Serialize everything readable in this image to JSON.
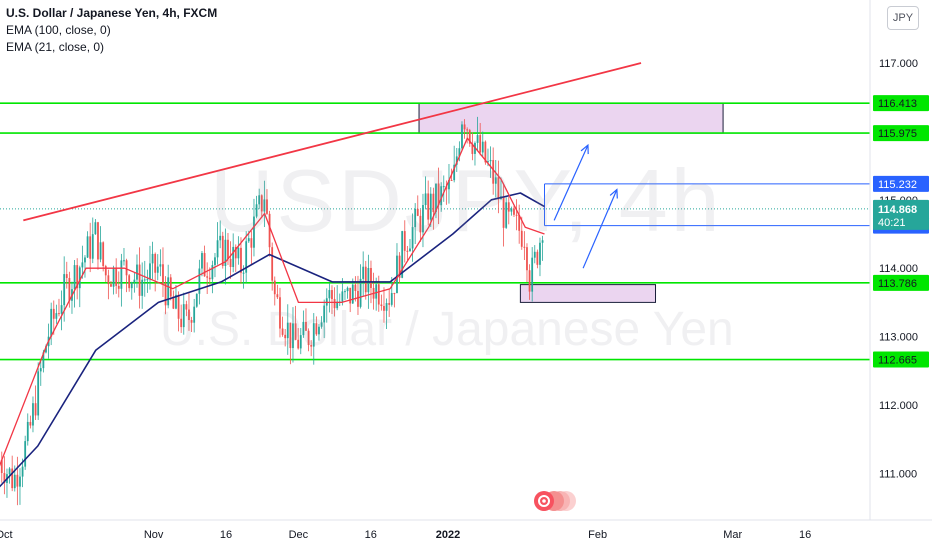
{
  "header": {
    "title": "U.S. Dollar / Japanese Yen, 4h, FXCM",
    "indicators": [
      "EMA (100, close, 0)",
      "EMA (21, close, 0)"
    ],
    "currency_button": "JPY"
  },
  "watermark": {
    "symbol": "USDJPY, 4h",
    "description": "U.S. Dollar / Japanese Yen"
  },
  "colors": {
    "up": "#26a69a",
    "down": "#ef5350",
    "ema21": "#f23645",
    "ema100": "#1a237e",
    "level": "#00e600",
    "trendline": "#f23645",
    "zone_fill": "#ebd5f0",
    "arrow": "#2962ff"
  },
  "chart_data": {
    "type": "candlestick",
    "symbol": "USDJPY",
    "interval": "4h",
    "y_range": [
      110.55,
      117.9
    ],
    "y_ticks": [
      "117.000",
      "114.000",
      "113.000",
      "112.000",
      "111.000"
    ],
    "x_ticks": [
      "Oct",
      "Nov",
      "16",
      "Dec",
      "16",
      "2022",
      "Feb",
      "Mar",
      "16"
    ],
    "last_price": "114.868",
    "countdown": "40:21",
    "horizontal_levels": [
      "116.413",
      "115.975",
      "112.665",
      "113.786"
    ],
    "box_lines": [
      "115.232",
      "114.623"
    ],
    "hidden_label": "115.000",
    "zones": [
      {
        "name": "supply-zone",
        "top": 116.413,
        "bottom": 115.975
      },
      {
        "name": "demand-zone",
        "top": 113.76,
        "bottom": 113.5
      }
    ],
    "ohlc_anchors": [
      {
        "date": "2021-09-30",
        "price": 111.2
      },
      {
        "date": "2021-10-03",
        "price": 110.9
      },
      {
        "date": "2021-10-06",
        "price": 111.5
      },
      {
        "date": "2021-10-10",
        "price": 113.0
      },
      {
        "date": "2021-10-13",
        "price": 113.6
      },
      {
        "date": "2021-10-18",
        "price": 114.2
      },
      {
        "date": "2021-10-20",
        "price": 114.5
      },
      {
        "date": "2021-10-22",
        "price": 113.9
      },
      {
        "date": "2021-10-26",
        "price": 114.0
      },
      {
        "date": "2021-10-29",
        "price": 113.8
      },
      {
        "date": "2021-11-02",
        "price": 114.0
      },
      {
        "date": "2021-11-05",
        "price": 113.4
      },
      {
        "date": "2021-11-08",
        "price": 113.2
      },
      {
        "date": "2021-11-11",
        "price": 114.0
      },
      {
        "date": "2021-11-16",
        "price": 114.3
      },
      {
        "date": "2021-11-19",
        "price": 114.0
      },
      {
        "date": "2021-11-24",
        "price": 115.1
      },
      {
        "date": "2021-11-26",
        "price": 113.6
      },
      {
        "date": "2021-11-30",
        "price": 112.9
      },
      {
        "date": "2021-12-03",
        "price": 113.0
      },
      {
        "date": "2021-12-07",
        "price": 113.6
      },
      {
        "date": "2021-12-10",
        "price": 113.5
      },
      {
        "date": "2021-12-15",
        "price": 113.8
      },
      {
        "date": "2021-12-20",
        "price": 113.6
      },
      {
        "date": "2021-12-23",
        "price": 114.4
      },
      {
        "date": "2021-12-28",
        "price": 114.9
      },
      {
        "date": "2022-01-02",
        "price": 115.2
      },
      {
        "date": "2022-01-04",
        "price": 116.3
      },
      {
        "date": "2022-01-06",
        "price": 115.9
      },
      {
        "date": "2022-01-10",
        "price": 115.4
      },
      {
        "date": "2022-01-13",
        "price": 114.7
      },
      {
        "date": "2022-01-17",
        "price": 114.5
      },
      {
        "date": "2022-01-18",
        "price": 113.8
      },
      {
        "date": "2022-01-20",
        "price": 114.4
      },
      {
        "date": "2022-01-21",
        "price": 114.87
      }
    ],
    "ema21_anchors": [
      {
        "date": "2021-09-30",
        "price": 111.1
      },
      {
        "date": "2021-10-10",
        "price": 112.9
      },
      {
        "date": "2021-10-18",
        "price": 114.0
      },
      {
        "date": "2021-10-26",
        "price": 114.0
      },
      {
        "date": "2021-11-05",
        "price": 113.7
      },
      {
        "date": "2021-11-16",
        "price": 114.1
      },
      {
        "date": "2021-11-24",
        "price": 114.8
      },
      {
        "date": "2021-12-01",
        "price": 113.5
      },
      {
        "date": "2021-12-10",
        "price": 113.5
      },
      {
        "date": "2021-12-20",
        "price": 113.7
      },
      {
        "date": "2021-12-28",
        "price": 114.6
      },
      {
        "date": "2022-01-05",
        "price": 115.9
      },
      {
        "date": "2022-01-12",
        "price": 115.3
      },
      {
        "date": "2022-01-17",
        "price": 114.6
      },
      {
        "date": "2022-01-21",
        "price": 114.5
      }
    ],
    "ema100_anchors": [
      {
        "date": "2021-09-30",
        "price": 110.8
      },
      {
        "date": "2021-10-08",
        "price": 111.4
      },
      {
        "date": "2021-10-20",
        "price": 112.8
      },
      {
        "date": "2021-11-02",
        "price": 113.5
      },
      {
        "date": "2021-11-15",
        "price": 113.8
      },
      {
        "date": "2021-11-25",
        "price": 114.2
      },
      {
        "date": "2021-12-08",
        "price": 113.8
      },
      {
        "date": "2021-12-20",
        "price": 113.8
      },
      {
        "date": "2022-01-02",
        "price": 114.5
      },
      {
        "date": "2022-01-10",
        "price": 115.0
      },
      {
        "date": "2022-01-16",
        "price": 115.1
      },
      {
        "date": "2022-01-21",
        "price": 114.9
      }
    ],
    "trendline": [
      {
        "date": "2021-10-05",
        "price": 114.7
      },
      {
        "date": "2022-02-10",
        "price": 117.0
      }
    ],
    "projection_arrows": [
      [
        {
          "date": "2022-01-23",
          "price": 114.7
        },
        {
          "date": "2022-01-30",
          "price": 115.8
        }
      ],
      [
        {
          "date": "2022-01-29",
          "price": 114.0
        },
        {
          "date": "2022-02-05",
          "price": 115.15
        }
      ]
    ]
  }
}
